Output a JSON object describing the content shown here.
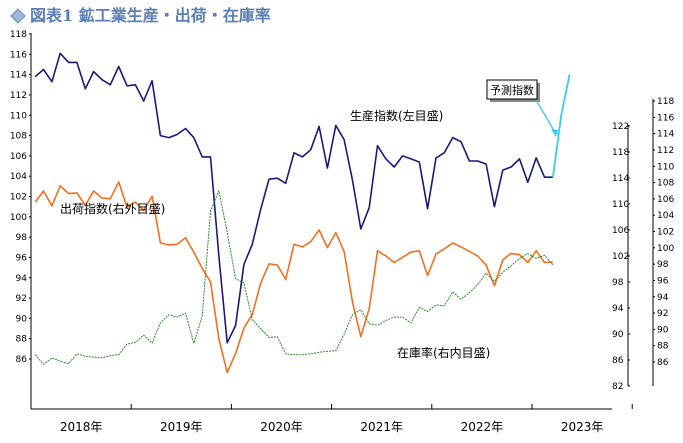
{
  "colors": {
    "production": "#1a1a7a",
    "shipments": "#f07020",
    "inventory": "#2a8a2a",
    "forecast": "#3cc8f0",
    "title": "#5b7fb5"
  },
  "chart_data": {
    "type": "line",
    "title": "図表1 鉱工業生産・出荷・在庫率",
    "x_axis": {
      "labels": [
        "2018年",
        "2019年",
        "2020年",
        "2021年",
        "2022年",
        "2023年"
      ]
    },
    "y_left": {
      "min": 86,
      "max": 118,
      "step": 2,
      "ticks": [
        86,
        88,
        90,
        92,
        94,
        96,
        98,
        100,
        102,
        104,
        106,
        108,
        110,
        112,
        114,
        116,
        118
      ]
    },
    "y_right1": {
      "min": 82,
      "max": 122,
      "step": 4,
      "ticks": [
        82,
        86,
        90,
        94,
        98,
        102,
        106,
        110,
        114,
        118,
        122
      ]
    },
    "y_right2": {
      "min": 86,
      "max": 118,
      "step": 2,
      "ticks": [
        86,
        88,
        90,
        92,
        94,
        96,
        98,
        100,
        102,
        104,
        106,
        108,
        110,
        112,
        114,
        116,
        118
      ]
    },
    "grid": false,
    "annotations": {
      "production": "生産指数(左目盛)",
      "shipments": "出荷指数(右外目盛)",
      "inventory": "在庫率(右内目盛)",
      "forecast": "予測指数"
    },
    "series": [
      {
        "key": "production",
        "axis": "left",
        "values": [
          113.8,
          114.5,
          113.3,
          116.1,
          115.2,
          115.2,
          112.6,
          114.3,
          113.5,
          113.0,
          114.8,
          112.9,
          113.0,
          111.4,
          113.4,
          108.0,
          107.8,
          108.1,
          108.7,
          107.8,
          105.9,
          105.9,
          96.1,
          87.6,
          89.3,
          95.3,
          97.3,
          100.7,
          103.7,
          103.8,
          103.3,
          106.3,
          105.9,
          106.6,
          108.9,
          104.8,
          109.0,
          107.6,
          103.6,
          98.8,
          100.9,
          107.0,
          105.7,
          104.9,
          106.0,
          105.7,
          105.4,
          100.8,
          105.8,
          106.3,
          107.8,
          107.4,
          105.5,
          105.5,
          105.2,
          101.0,
          104.6,
          104.9,
          105.7,
          103.4,
          105.8,
          103.9,
          103.9
        ],
        "forecast_values": [
          103.9,
          110.0,
          114.0
        ]
      },
      {
        "key": "shipments",
        "axis": "right1",
        "values": [
          110.3,
          112.0,
          109.7,
          112.8,
          111.6,
          111.7,
          109.8,
          112.0,
          110.9,
          110.8,
          113.4,
          109.5,
          110.3,
          109.0,
          111.2,
          104.0,
          103.7,
          103.8,
          104.8,
          102.6,
          100.1,
          98.0,
          89.2,
          84.1,
          87.0,
          90.9,
          93.0,
          97.8,
          100.8,
          100.6,
          98.4,
          103.8,
          103.4,
          104.2,
          106.0,
          103.3,
          105.6,
          102.7,
          94.9,
          89.6,
          93.9,
          102.8,
          102.0,
          101.0,
          101.8,
          102.6,
          102.8,
          99.0,
          102.3,
          103.1,
          104.0,
          103.4,
          102.7,
          102.0,
          100.6,
          97.4,
          101.4,
          102.4,
          102.2,
          101.0,
          102.8,
          101.0,
          101.1
        ]
      },
      {
        "key": "inventory",
        "axis": "right2",
        "values": [
          86.9,
          85.7,
          86.5,
          86.1,
          85.8,
          87.0,
          86.7,
          86.6,
          86.5,
          86.8,
          86.9,
          88.2,
          88.4,
          89.3,
          88.3,
          90.8,
          91.8,
          91.5,
          92.0,
          88.3,
          91.6,
          104.5,
          107.0,
          101.9,
          96.2,
          95.7,
          91.2,
          90.1,
          89.0,
          89.1,
          87.0,
          86.9,
          86.9,
          87.0,
          87.2,
          87.3,
          87.4,
          89.4,
          91.8,
          92.4,
          90.7,
          90.5,
          91.1,
          91.5,
          91.5,
          90.8,
          92.7,
          92.2,
          93.0,
          92.9,
          94.6,
          93.7,
          94.5,
          95.5,
          96.9,
          95.9,
          97.0,
          97.8,
          98.7,
          99.3,
          98.7,
          99.1,
          97.9
        ]
      }
    ]
  }
}
